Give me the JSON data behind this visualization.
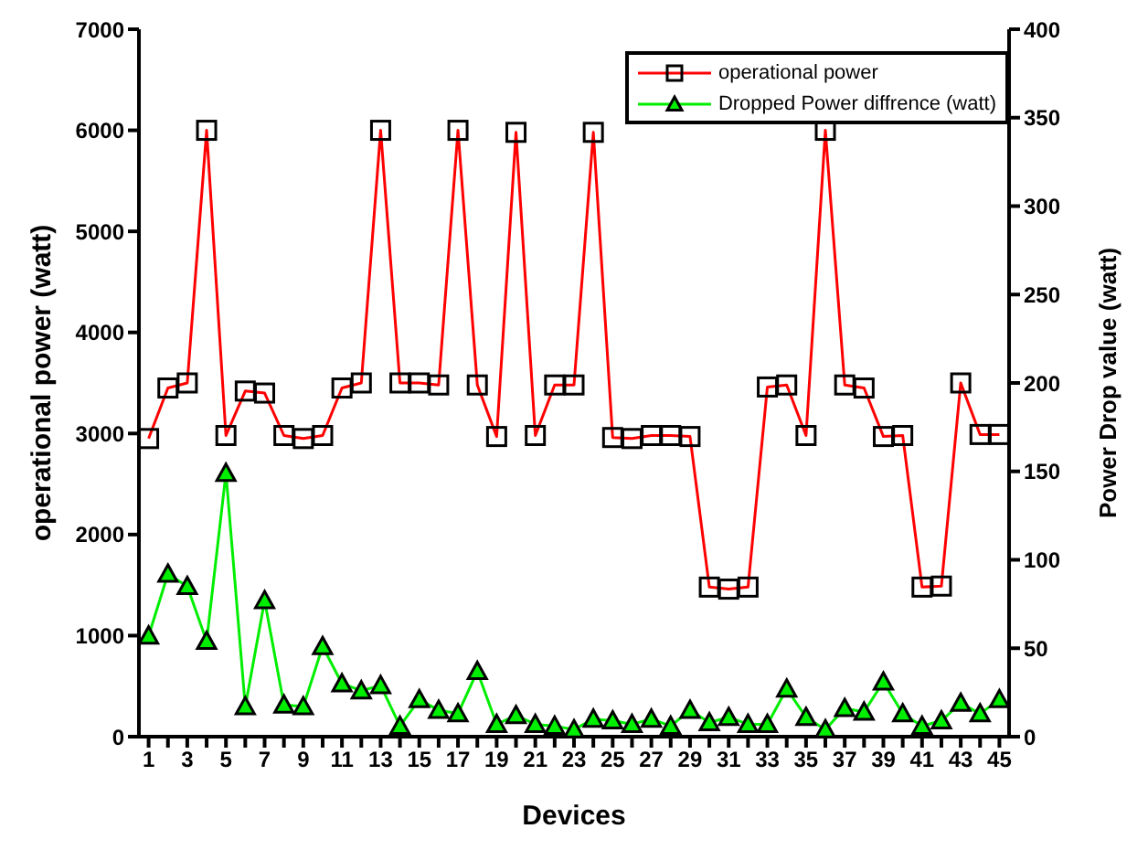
{
  "chart_data": {
    "type": "line",
    "xlabel": "Devices",
    "ylabel": "operational power (watt)",
    "y2label": "Power Drop value (watt)",
    "x": [
      1,
      2,
      3,
      4,
      5,
      6,
      7,
      8,
      9,
      10,
      11,
      12,
      13,
      14,
      15,
      16,
      17,
      18,
      19,
      20,
      21,
      22,
      23,
      24,
      25,
      26,
      27,
      28,
      29,
      30,
      31,
      32,
      33,
      34,
      35,
      36,
      37,
      38,
      39,
      40,
      41,
      42,
      43,
      44,
      45
    ],
    "series": [
      {
        "name": "operational power",
        "color": "#ff0000",
        "marker": "square",
        "values": [
          2950,
          3450,
          3500,
          6000,
          2980,
          3420,
          3400,
          2980,
          2950,
          2980,
          3450,
          3500,
          6000,
          3500,
          3500,
          3480,
          6000,
          3480,
          2970,
          5980,
          2980,
          3480,
          3480,
          5980,
          2960,
          2950,
          2980,
          2980,
          2970,
          1480,
          1460,
          1480,
          3460,
          3480,
          2980,
          6000,
          3480,
          3450,
          2970,
          2980,
          1480,
          1490,
          3500,
          2990,
          2990
        ]
      },
      {
        "name": "Dropped Power diffrence (watt)",
        "color": "#00ee00",
        "marker": "triangle",
        "axis": "y2",
        "values": [
          57,
          92,
          85,
          54,
          149,
          17,
          77,
          18,
          17,
          51,
          30,
          26,
          29,
          6,
          21,
          15,
          13,
          37,
          7,
          12,
          7,
          6,
          4,
          10,
          9,
          7,
          10,
          6,
          15,
          8,
          11,
          7,
          7,
          27,
          11,
          4,
          16,
          14,
          31,
          13,
          6,
          9,
          19,
          13,
          21
        ]
      }
    ],
    "xlim": [
      0.5,
      45.5
    ],
    "xticks": [
      1,
      {
        "value": 2,
        "label": null
      },
      3,
      {
        "value": 4,
        "label": null
      },
      5,
      {
        "value": 6,
        "label": null
      },
      7,
      {
        "value": 8,
        "label": null
      },
      9,
      {
        "value": 10,
        "label": null
      },
      11,
      {
        "value": 12,
        "label": null
      },
      13,
      {
        "value": 14,
        "label": null
      },
      15,
      {
        "value": 16,
        "label": null
      },
      17,
      {
        "value": 18,
        "label": null
      },
      19,
      {
        "value": 20,
        "label": null
      },
      21,
      {
        "value": 22,
        "label": null
      },
      23,
      {
        "value": 24,
        "label": null
      },
      25,
      {
        "value": 26,
        "label": null
      },
      27,
      {
        "value": 28,
        "label": null
      },
      29,
      {
        "value": 30,
        "label": null
      },
      31,
      {
        "value": 32,
        "label": null
      },
      33,
      {
        "value": 34,
        "label": null
      },
      35,
      {
        "value": 36,
        "label": null
      },
      37,
      {
        "value": 38,
        "label": null
      },
      39,
      {
        "value": 40,
        "label": null
      },
      41,
      {
        "value": 42,
        "label": null
      },
      43,
      {
        "value": 44,
        "label": null
      },
      45
    ],
    "ylim": [
      0,
      7000
    ],
    "yticks": [
      0,
      1000,
      2000,
      3000,
      4000,
      5000,
      6000,
      7000
    ],
    "y2lim": [
      0,
      400
    ],
    "y2ticks": [
      0,
      50,
      100,
      150,
      200,
      250,
      300,
      350,
      400
    ],
    "grid": false,
    "legend": "top right",
    "line_style": "solid"
  }
}
